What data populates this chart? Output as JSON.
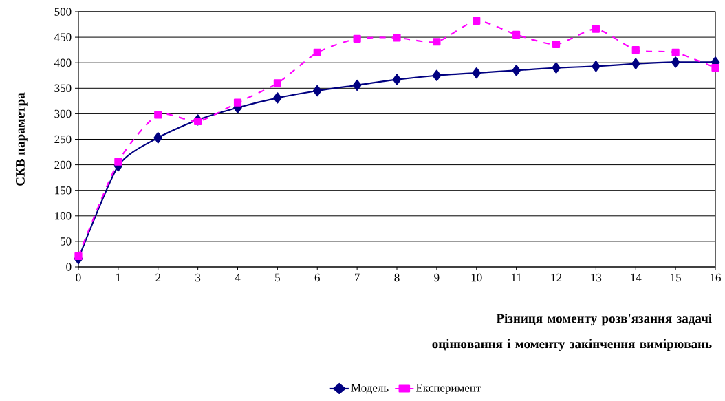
{
  "chart_data": {
    "type": "line",
    "xlabel": "Різниця моменту розв'язання задачі оцінювання і моменту закінчення вимірювань",
    "ylabel": "СКВ параметра",
    "x": [
      0,
      1,
      2,
      3,
      4,
      5,
      6,
      7,
      8,
      9,
      10,
      11,
      12,
      13,
      14,
      15,
      16
    ],
    "xlim": [
      0,
      16
    ],
    "xticks": [
      0,
      1,
      2,
      3,
      4,
      5,
      6,
      7,
      8,
      9,
      10,
      11,
      12,
      13,
      14,
      15,
      16
    ],
    "ylim": [
      0,
      500
    ],
    "yticks": [
      0,
      50,
      100,
      150,
      200,
      250,
      300,
      350,
      400,
      450,
      500
    ],
    "grid": "y",
    "legend": "bottom",
    "series": [
      {
        "name": "Модель",
        "color": "#000080",
        "marker": "diamond",
        "line_style": "solid",
        "values": [
          16,
          198,
          253,
          288,
          312,
          331,
          345,
          356,
          367,
          375,
          380,
          385,
          390,
          393,
          398,
          401,
          401
        ]
      },
      {
        "name": "Експеримент",
        "color": "#ff00ff",
        "marker": "square",
        "line_style": "dashed",
        "values": [
          21,
          206,
          298,
          285,
          322,
          360,
          420,
          447,
          449,
          441,
          482,
          455,
          436,
          466,
          425,
          420,
          390
        ]
      }
    ]
  }
}
